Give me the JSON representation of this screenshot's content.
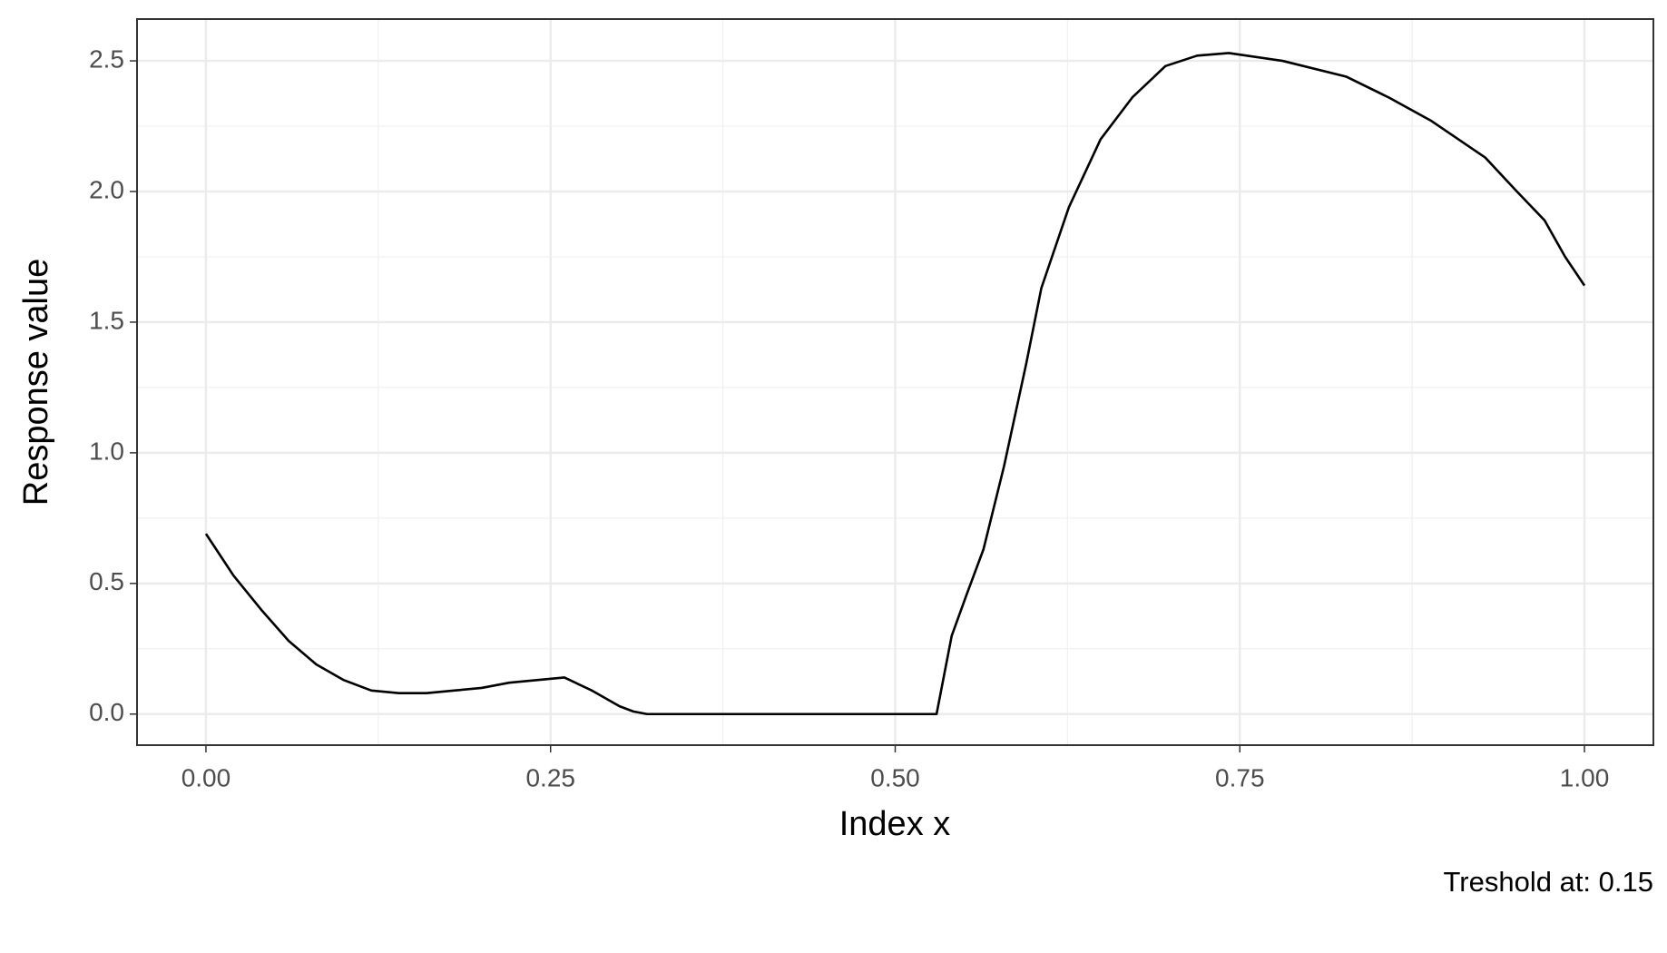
{
  "chart_data": {
    "type": "line",
    "x_label": "Index x",
    "y_label": "Response value",
    "caption": "Treshold at: 0.15",
    "x": [
      0,
      0.02,
      0.04,
      0.06,
      0.08,
      0.1,
      0.12,
      0.14,
      0.16,
      0.18,
      0.2,
      0.22,
      0.24,
      0.26,
      0.28,
      0.3,
      0.31,
      0.32,
      0.4,
      0.5,
      0.53,
      0.541,
      0.552,
      0.564,
      0.579,
      0.595,
      0.606,
      0.626,
      0.649,
      0.672,
      0.696,
      0.719,
      0.742,
      0.781,
      0.827,
      0.858,
      0.889,
      0.928,
      0.951,
      0.971,
      0.986,
      1.0
    ],
    "values": [
      0.69,
      0.53,
      0.4,
      0.28,
      0.19,
      0.13,
      0.09,
      0.08,
      0.08,
      0.09,
      0.1,
      0.12,
      0.13,
      0.14,
      0.09,
      0.03,
      0.01,
      0,
      0,
      0,
      0,
      0.3,
      0.46,
      0.63,
      0.95,
      1.34,
      1.63,
      1.94,
      2.2,
      2.36,
      2.48,
      2.52,
      2.53,
      2.5,
      2.44,
      2.36,
      2.27,
      2.13,
      2.0,
      1.89,
      1.75,
      1.64
    ],
    "color": "#000000",
    "xlim": [
      -0.05,
      1.05
    ],
    "ylim": [
      -0.119,
      2.66
    ],
    "xticks": [
      {
        "value": 0,
        "label": "0.00"
      },
      {
        "value": 0.25,
        "label": "0.25"
      },
      {
        "value": 0.5,
        "label": "0.50"
      },
      {
        "value": 0.75,
        "label": "0.75"
      },
      {
        "value": 1,
        "label": "1.00"
      }
    ],
    "yticks": [
      {
        "value": 0,
        "label": "0.0"
      },
      0.5,
      {
        "value": 1,
        "label": "1.0"
      },
      1.5,
      {
        "value": 2,
        "label": "2.0"
      },
      2.5
    ],
    "grid": true
  }
}
